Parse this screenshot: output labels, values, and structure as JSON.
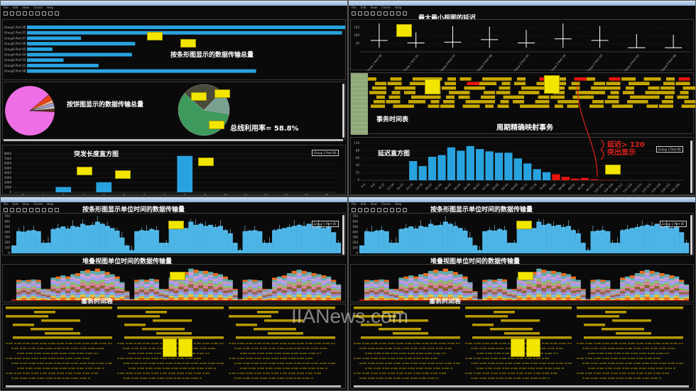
{
  "menu": [
    "File",
    "Edit",
    "View",
    "Charts",
    "Help"
  ],
  "top_left": {
    "bar_title": "按条形图显示的数据传输总量",
    "pie_title": "按饼图显示的数据传输总量",
    "bus_utilization": "总线利用率= 58.8%",
    "hist_title": "突发长度直方图",
    "hist_legend": "Group 1 Port 00"
  },
  "top_right": {
    "minmax_title": "最大最小视图的延迟",
    "timeline_title": "事务时间表",
    "timeline_subtitle": "周期精确映射事务",
    "latency_title": "延迟直方图",
    "highlight_note_1": "延迟> 120",
    "highlight_note_2": "突出显示",
    "latency_legend": "Group 1 Port 00"
  },
  "bottom": {
    "bar_ts_title": "按条形图显示单位时间的数据传输量",
    "stacked_title": "堆叠视图单位时间的数据传输量",
    "table_title": "事务时间表",
    "legend": "Group 1 Port 00"
  },
  "watermark": "IIANews.com",
  "colors": {
    "bar": "#29a3e0",
    "highlight": "#e8140f",
    "timeline": "#c9a800",
    "callout": "#f2e600"
  },
  "chart_data": [
    {
      "type": "bar",
      "orientation": "horizontal",
      "categories": [
        "Group1 Port 00",
        "Group1 Port 01",
        "Group0 Port 07",
        "Group0 Port 06",
        "Group0 Port 05",
        "Group0 Port 04",
        "Group0 Port 03",
        "Group0 Port 02",
        "Group0 Port 08"
      ],
      "values": [
        100,
        99,
        17,
        34,
        8,
        33,
        11.5,
        22.5,
        72
      ]
    },
    {
      "type": "pie",
      "values": [
        88,
        4,
        2,
        2,
        2,
        2
      ],
      "colors": [
        "#ee6ee6",
        "#e8401a",
        "#f0b080",
        "#a0a0e0",
        "#c0c0c0",
        "#603020"
      ]
    },
    {
      "type": "pie",
      "values": [
        58.8,
        26,
        15.2
      ],
      "colors": [
        "#3d9a5c",
        "#4a4a3a",
        "#7aa090"
      ]
    },
    {
      "type": "bar",
      "categories": [
        "0",
        "1",
        "2",
        "3",
        "4",
        "5",
        "6",
        "7",
        "8",
        "9",
        "10",
        "11",
        "12",
        "13",
        "14",
        "15"
      ],
      "values": [
        0,
        0,
        1100,
        0,
        2100,
        0,
        0,
        0,
        7600,
        0,
        0,
        0,
        0,
        0,
        0,
        0
      ],
      "ylim": [
        0,
        8000
      ],
      "yticks": [
        "0",
        "1000",
        "2000",
        "3000",
        "4000",
        "5000",
        "6000",
        "7000",
        "8000"
      ]
    },
    {
      "type": "boxplot",
      "categories": [
        "Group 1 Port 00",
        "Group 1 Port 01",
        "Group 0 Port 07",
        "Group 0 Port 06",
        "Group 0 Port 05",
        "Group 0 Port 04",
        "Group 0 Port 03",
        "Group 0 Port 02",
        "Group 0 Port 08"
      ],
      "min": [
        25,
        25,
        25,
        25,
        25,
        25,
        25,
        25,
        25
      ],
      "max": [
        175,
        120,
        160,
        155,
        135,
        175,
        160,
        110,
        105
      ],
      "avg": [
        70,
        55,
        60,
        75,
        55,
        80,
        70,
        25,
        25
      ],
      "yticks": [
        "50",
        "100",
        "150"
      ],
      "ylim": [
        0,
        180
      ]
    },
    {
      "type": "bar",
      "x_labels": [
        "0-4",
        "4-8",
        "8-12",
        "12-16",
        "16-20",
        "20-24",
        "24-28",
        "28-32",
        "32-36",
        "36-40",
        "40-44",
        "44-48",
        "48-52",
        "52-56",
        "56-60",
        "60-64",
        "64-68",
        "68-72",
        "72-76",
        "76-80",
        "80-84",
        "84-88",
        "88-92",
        "92-96",
        "96-100",
        "100-104",
        "104-108",
        "108-112",
        "112-116",
        "116-120",
        "120-124",
        "124-128",
        "128-132",
        "132-136"
      ],
      "values": [
        0,
        0,
        0,
        0,
        0,
        57,
        42,
        70,
        75,
        98,
        88,
        102,
        93,
        86,
        82,
        82,
        65,
        50,
        33,
        24,
        18,
        10,
        5,
        7,
        3,
        1,
        1,
        0,
        0,
        0,
        0,
        0,
        0,
        0
      ],
      "highlight_above_bin": 20,
      "ylim": [
        0,
        110
      ],
      "yticks": [
        "0",
        "22",
        "44",
        "66",
        "88",
        "110"
      ]
    },
    {
      "type": "bar",
      "series_name": "Group 1 Port 00",
      "values": [
        150,
        420,
        410,
        430,
        440,
        420,
        200,
        200,
        460,
        480,
        510,
        470,
        520,
        500,
        560,
        530,
        540,
        600,
        560,
        520,
        480,
        430,
        300,
        150,
        60,
        420,
        440,
        430,
        460,
        440,
        200,
        200,
        480,
        500,
        520,
        480,
        600,
        540,
        560,
        520,
        540,
        500,
        520,
        440,
        380,
        200,
        60,
        420,
        430,
        440,
        420,
        200,
        200,
        440,
        460,
        480,
        500,
        520,
        540,
        520,
        560,
        500,
        520,
        480,
        500,
        400,
        200
      ],
      "ylim": [
        0,
        700
      ],
      "yticks": [
        "0",
        "100",
        "200",
        "300",
        "400",
        "500",
        "600",
        "700"
      ]
    },
    {
      "type": "area",
      "stacked": true,
      "values": [
        0,
        900,
        880,
        900,
        920,
        900,
        500,
        500,
        1000,
        1050,
        1100,
        1050,
        1150,
        1200,
        1300,
        1350,
        1300,
        1400,
        1300,
        1250,
        1150,
        1050,
        800,
        400,
        60,
        900,
        920,
        900,
        950,
        920,
        500,
        500,
        1000,
        1050,
        1200,
        1250,
        1400,
        1350,
        1300,
        1300,
        1250,
        1200,
        1150,
        1050,
        900,
        500,
        60,
        900,
        920,
        900,
        880,
        500,
        500,
        1000,
        1050,
        1100,
        1200,
        1300,
        1350,
        1300,
        1250,
        1200,
        1150,
        1100,
        1050,
        900,
        700
      ],
      "ylim": [
        0,
        1450
      ],
      "layers": [
        "#f07020",
        "#e8c040",
        "#7ac0e0",
        "#b080d0",
        "#8a6a30",
        "#e080a0",
        "#90c070",
        "#a0a0ff",
        "#d0a0d0",
        "#60b0b0"
      ]
    }
  ]
}
